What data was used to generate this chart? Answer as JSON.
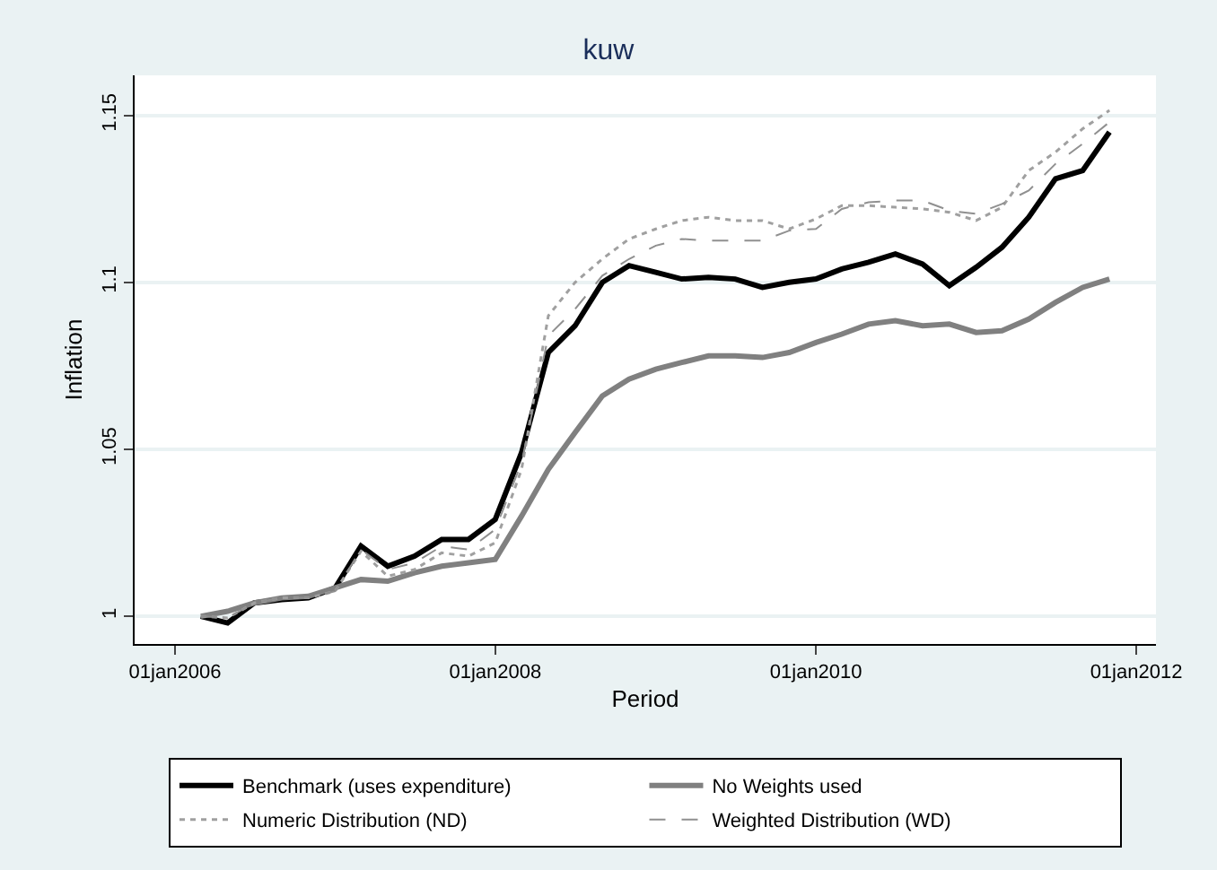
{
  "chart_data": {
    "type": "line",
    "title": "kuw",
    "xlabel": "Period",
    "ylabel": "Inflation",
    "x": [
      "2006-03",
      "2006-05",
      "2006-07",
      "2006-09",
      "2006-11",
      "2007-01",
      "2007-03",
      "2007-05",
      "2007-07",
      "2007-09",
      "2007-11",
      "2008-01",
      "2008-03",
      "2008-05",
      "2008-07",
      "2008-09",
      "2008-11",
      "2009-01",
      "2009-03",
      "2009-05",
      "2009-07",
      "2009-09",
      "2009-11",
      "2010-01",
      "2010-03",
      "2010-05",
      "2010-07",
      "2010-09",
      "2010-11",
      "2011-01",
      "2011-03",
      "2011-05",
      "2011-07",
      "2011-09",
      "2011-11"
    ],
    "series": [
      {
        "name": "Benchmark (uses expenditure)",
        "color": "#000000",
        "line_style": "solid",
        "values": [
          1.0,
          0.998,
          1.004,
          1.005,
          1.0055,
          1.0085,
          1.021,
          1.015,
          1.018,
          1.023,
          1.023,
          1.029,
          1.049,
          1.079,
          1.087,
          1.1,
          1.105,
          1.103,
          1.101,
          1.1015,
          1.101,
          1.0985,
          1.1,
          1.101,
          1.104,
          1.106,
          1.1085,
          1.1055,
          1.099,
          1.1045,
          1.1105,
          1.1195,
          1.131,
          1.1335,
          1.145
        ]
      },
      {
        "name": "No Weights used",
        "color": "#808080",
        "line_style": "solid",
        "values": [
          1.0,
          1.0015,
          1.004,
          1.0055,
          1.006,
          1.0085,
          1.011,
          1.0105,
          1.013,
          1.015,
          1.016,
          1.017,
          1.03,
          1.044,
          1.055,
          1.066,
          1.071,
          1.074,
          1.076,
          1.078,
          1.078,
          1.0775,
          1.079,
          1.082,
          1.0845,
          1.0875,
          1.0885,
          1.087,
          1.0875,
          1.085,
          1.0855,
          1.089,
          1.094,
          1.0985,
          1.101
        ]
      },
      {
        "name": "Numeric Distribution (ND)",
        "color": "#a0a0a0",
        "line_style": "dotted",
        "values": [
          1.0,
          0.9995,
          1.004,
          1.0055,
          1.0055,
          1.0075,
          1.0195,
          1.012,
          1.014,
          1.019,
          1.018,
          1.022,
          1.044,
          1.09,
          1.1,
          1.107,
          1.113,
          1.116,
          1.1185,
          1.1195,
          1.1185,
          1.1185,
          1.116,
          1.119,
          1.123,
          1.123,
          1.1225,
          1.122,
          1.121,
          1.1185,
          1.1225,
          1.1335,
          1.139,
          1.146,
          1.1515
        ]
      },
      {
        "name": "Weighted Distribution (WD)",
        "color": "#909090",
        "line_style": "dashed",
        "values": [
          1.0,
          0.9995,
          1.004,
          1.0055,
          1.0055,
          1.0075,
          1.02,
          1.014,
          1.016,
          1.021,
          1.02,
          1.026,
          1.046,
          1.084,
          1.092,
          1.102,
          1.107,
          1.111,
          1.113,
          1.1125,
          1.1125,
          1.1125,
          1.1155,
          1.116,
          1.122,
          1.124,
          1.1245,
          1.1245,
          1.1215,
          1.1205,
          1.1235,
          1.1275,
          1.1355,
          1.1415,
          1.148
        ]
      }
    ],
    "xlim": [
      "2005-10-01",
      "2012-02-15"
    ],
    "xticks": [
      {
        "value": "2006-01-01",
        "label": "01jan2006"
      },
      {
        "value": "2008-01-01",
        "label": "01jan2008"
      },
      {
        "value": "2010-01-01",
        "label": "01jan2010"
      },
      {
        "value": "2012-01-01",
        "label": "01jan2012"
      }
    ],
    "ylim": [
      0.9917,
      1.162
    ],
    "yticks": [
      1,
      1.05,
      1.1,
      1.15
    ],
    "grid": "y",
    "legend": "bottom",
    "marker": "none"
  }
}
